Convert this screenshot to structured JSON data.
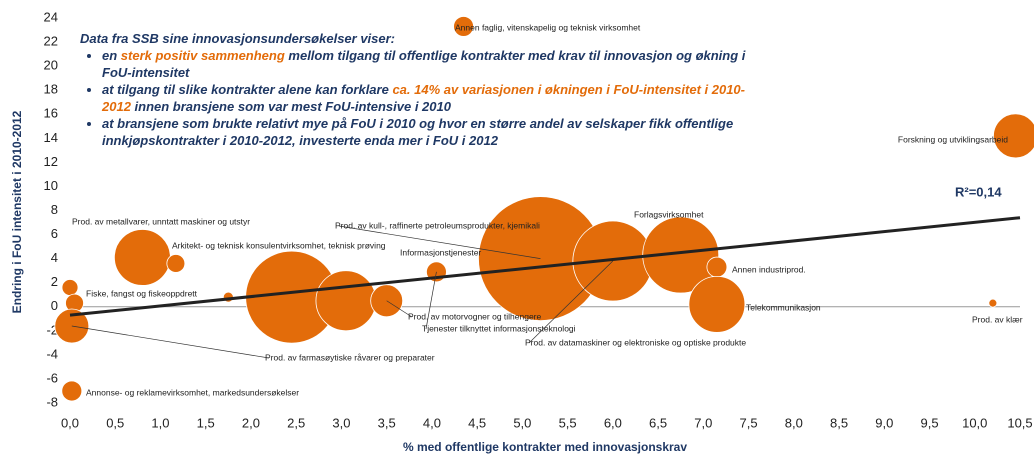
{
  "chart_data": {
    "type": "bubble",
    "x_label": "% med offentlige kontrakter med innovasjonskrav",
    "y_label": "Endring i FoU intensitet i 2010-2012",
    "text_box": {
      "heading": "Data fra SSB sine innovasjonsundersøkelser viser:",
      "bullets": [
        [
          {
            "text": "en "
          },
          {
            "text": "sterk positiv sammenheng",
            "color": "#e36c0a"
          },
          {
            "text": " mellom tilgang til offentlige kontrakter med krav til innovasjon og økning i FoU-intensitet"
          }
        ],
        [
          {
            "text": "at tilgang til slike kontrakter alene kan forklare "
          },
          {
            "text": "ca. 14% av variasjonen i økningen i FoU-intensitet i 2010-2012",
            "color": "#e36c0a"
          },
          {
            "text": " innen bransjene som var mest FoU-intensive i 2010"
          }
        ],
        [
          {
            "text": "at bransjene som brukte relativt mye på FoU i 2010 og hvor en større andel av selskaper fikk offentlige innkjøpskontrakter i 2010-2012, investerte enda mer i FoU i 2012"
          }
        ]
      ]
    },
    "r_squared_label": "R²=0,14",
    "trendline": {
      "x": [
        0,
        10.5
      ],
      "y": [
        -0.7,
        7.4
      ],
      "color": "#222222"
    },
    "color": "#e36c0a",
    "point_labels": [
      "Annen faglig, vitenskapelig og teknisk virksomhet",
      "Forskning og utviklingsarbeid",
      "Prod. av metallvarer, unntatt maskiner og utstyr",
      "Fiske, fangst og fiskeoppdrett",
      "Prod. av farmasøytiske råvarer og preparater",
      "Annonse- og reklamevirksomhet, markedsundersøkelser",
      null,
      "Arkitekt- og teknisk konsulentvirksomhet, teknisk prøving",
      null,
      null,
      null,
      "Prod. av motorvogner og tilhengere",
      "Tjenester tilknyttet informasjonsteknologi",
      "Informasjonstjenester",
      "Prod. av kull-, raffinerte petroleumsprodukter, kjemikali",
      "Prod. av datamaskiner og elektroniske og optiske produkte",
      "Forlagsvirksomhet",
      "Annen industriprod.",
      "Telekommunikasjon",
      "Prod. av klær"
    ],
    "x": [
      4.35,
      10.45,
      0.0,
      0.05,
      0.02,
      0.02,
      0.8,
      1.17,
      1.75,
      2.45,
      3.05,
      3.5,
      4.05,
      4.8,
      5.2,
      6.0,
      6.75,
      7.15,
      7.15,
      10.2
    ],
    "values": [
      23.3,
      14.2,
      1.6,
      0.3,
      -1.6,
      -7.0,
      4.1,
      3.6,
      0.8,
      0.8,
      0.5,
      0.5,
      2.9,
      5.0,
      4.0,
      3.8,
      4.3,
      3.3,
      0.2,
      0.3
    ],
    "sizes": [
      100,
      484,
      64,
      81,
      289,
      100,
      784,
      81,
      25,
      2116,
      900,
      256,
      100,
      100,
      3844,
      1600,
      1444,
      100,
      784,
      16
    ],
    "xlim": [
      0,
      10.5
    ],
    "ylim": [
      -8,
      24
    ],
    "xticks": [
      {
        "value": 0,
        "label": "0,0"
      },
      {
        "value": 0.5,
        "label": "0,5"
      },
      {
        "value": 1,
        "label": "1,0"
      },
      {
        "value": 1.5,
        "label": "1,5"
      },
      {
        "value": 2,
        "label": "2,0"
      },
      {
        "value": 2.5,
        "label": "2,5"
      },
      {
        "value": 3,
        "label": "3,0"
      },
      {
        "value": 3.5,
        "label": "3,5"
      },
      {
        "value": 4,
        "label": "4,0"
      },
      {
        "value": 4.5,
        "label": "4,5"
      },
      {
        "value": 5,
        "label": "5,0"
      },
      {
        "value": 5.5,
        "label": "5,5"
      },
      {
        "value": 6,
        "label": "6,0"
      },
      {
        "value": 6.5,
        "label": "6,5"
      },
      {
        "value": 7,
        "label": "7,0"
      },
      {
        "value": 7.5,
        "label": "7,5"
      },
      {
        "value": 8,
        "label": "8,0"
      },
      {
        "value": 8.5,
        "label": "8,5"
      },
      {
        "value": 9,
        "label": "9,0"
      },
      {
        "value": 9.5,
        "label": "9,5"
      },
      {
        "value": 10,
        "label": "10,0"
      },
      {
        "value": 10.5,
        "label": "10,5"
      }
    ],
    "yticks": [
      -8,
      -6,
      -4,
      -2,
      0,
      2,
      4,
      6,
      8,
      10,
      12,
      14,
      16,
      18,
      20,
      22,
      24
    ],
    "grid": false
  }
}
